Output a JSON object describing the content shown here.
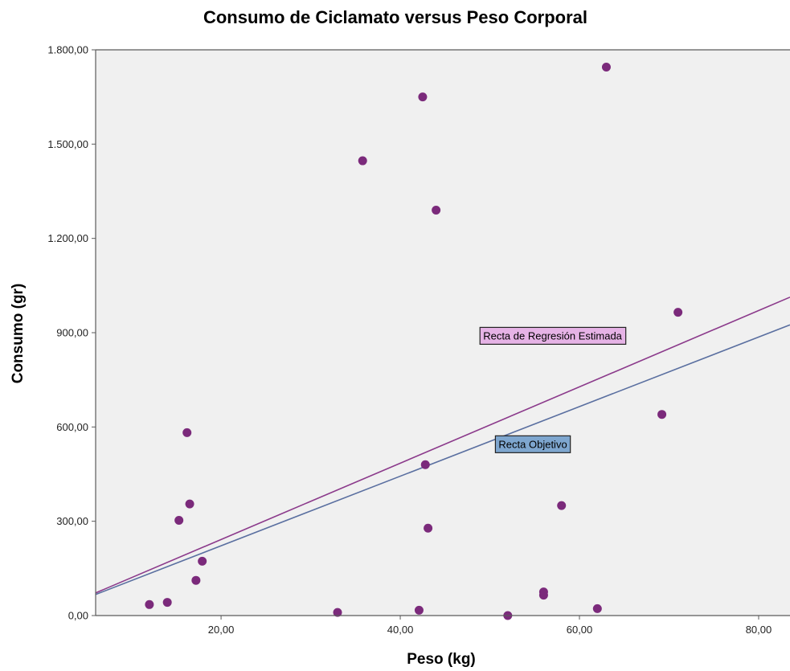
{
  "chart_data": {
    "type": "scatter",
    "title": "Consumo de Ciclamato versus Peso Corporal",
    "xlabel": "Peso (kg)",
    "ylabel": "Consumo (gr)",
    "xlim": [
      6,
      83.5
    ],
    "ylim": [
      0,
      1800
    ],
    "xticks": [
      {
        "value": 20,
        "label": "20,00"
      },
      {
        "value": 40,
        "label": "40,00"
      },
      {
        "value": 60,
        "label": "60,00"
      },
      {
        "value": 80,
        "label": "80,00"
      }
    ],
    "yticks": [
      {
        "value": 0,
        "label": "0,00"
      },
      {
        "value": 300,
        "label": "300,00"
      },
      {
        "value": 600,
        "label": "600,00"
      },
      {
        "value": 900,
        "label": "900,00"
      },
      {
        "value": 1200,
        "label": "1.200,00"
      },
      {
        "value": 1500,
        "label": "1.500,00"
      },
      {
        "value": 1800,
        "label": "1.800,00"
      }
    ],
    "grid": false,
    "points": [
      {
        "x": 12.0,
        "y": 35
      },
      {
        "x": 14.0,
        "y": 42
      },
      {
        "x": 15.3,
        "y": 303
      },
      {
        "x": 16.2,
        "y": 582
      },
      {
        "x": 16.5,
        "y": 355
      },
      {
        "x": 17.2,
        "y": 112
      },
      {
        "x": 17.9,
        "y": 173
      },
      {
        "x": 33.0,
        "y": 10
      },
      {
        "x": 35.8,
        "y": 1447
      },
      {
        "x": 42.1,
        "y": 17
      },
      {
        "x": 42.5,
        "y": 1650
      },
      {
        "x": 42.8,
        "y": 480
      },
      {
        "x": 43.1,
        "y": 278
      },
      {
        "x": 44.0,
        "y": 1290
      },
      {
        "x": 52.0,
        "y": 0
      },
      {
        "x": 56.0,
        "y": 65
      },
      {
        "x": 56.0,
        "y": 75
      },
      {
        "x": 58.0,
        "y": 350
      },
      {
        "x": 62.0,
        "y": 22
      },
      {
        "x": 63.0,
        "y": 1745
      },
      {
        "x": 69.2,
        "y": 640
      },
      {
        "x": 71.0,
        "y": 965
      }
    ],
    "lines": [
      {
        "name": "Recta de Regresión Estimada",
        "color": "#8b3a8b",
        "x": [
          6,
          83.5
        ],
        "y": [
          72,
          1013
        ]
      },
      {
        "name": "Recta Objetivo",
        "color": "#5a6fa0",
        "x": [
          6,
          83.5
        ],
        "y": [
          67,
          925
        ]
      }
    ],
    "annotations": [
      {
        "text": "Recta de Regresión Estimada",
        "x": 57,
        "y": 890,
        "bg": "#e6b3e6"
      },
      {
        "text": "Recta Objetivo",
        "x": 54.8,
        "y": 545,
        "bg": "#7ea6cf"
      }
    ],
    "colors": {
      "point": "#7b2a7b",
      "plot_bg": "#f0f0f0",
      "frame": "#5a5a5a"
    }
  }
}
